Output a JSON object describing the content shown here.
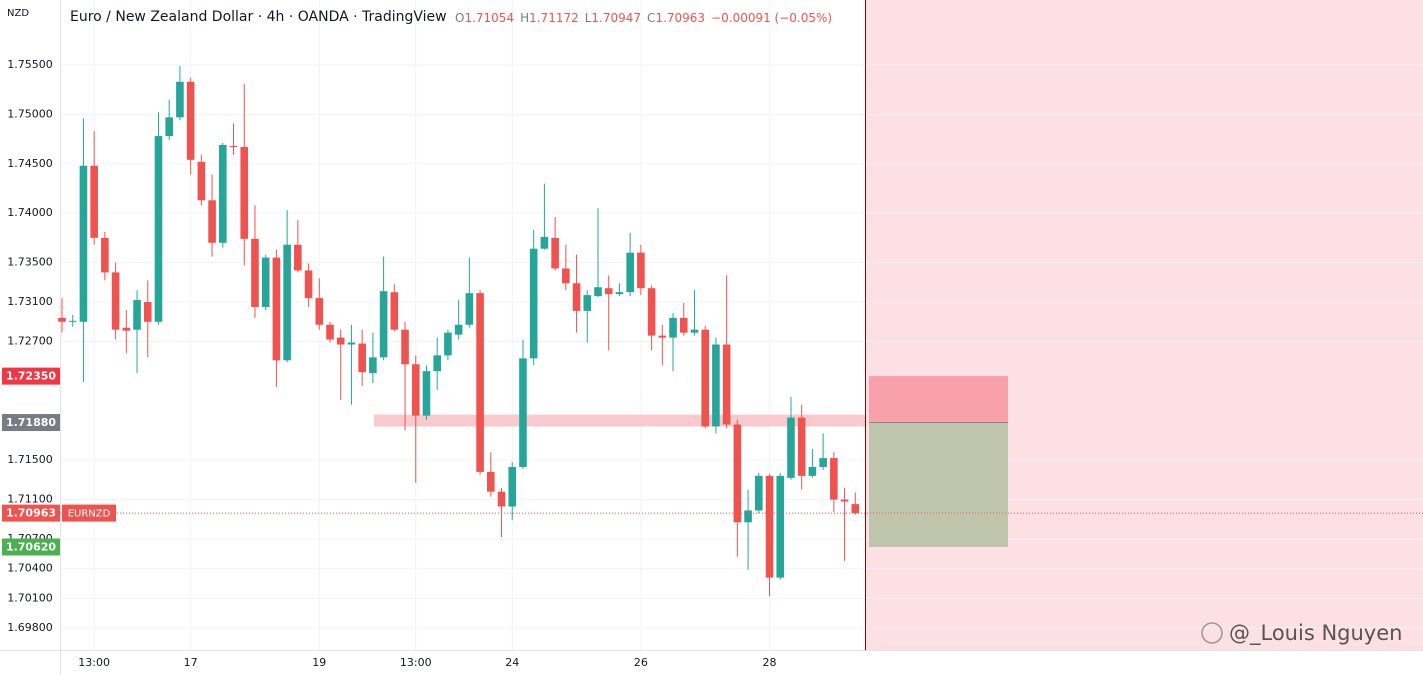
{
  "chart_data": {
    "type": "candlestick",
    "currency": "NZD",
    "title": "Euro / New Zealand Dollar · 4h · OANDA · TradingView",
    "legend": [
      {
        "key": "O",
        "value": "1.71054"
      },
      {
        "key": "H",
        "value": "1.71172"
      },
      {
        "key": "L",
        "value": "1.70947"
      },
      {
        "key": "C",
        "value": "1.70963"
      }
    ],
    "change": "−0.00091 (−0.05%)",
    "watermark": "@_Louis Nguyen",
    "symbol": "EURNZD",
    "up_color": "#26a69a",
    "down_color": "#ef5350",
    "grid": true,
    "ylim": [
      1.69577,
      1.76158
    ],
    "yticks": [
      {
        "value": 1.755,
        "label": "1.75500"
      },
      {
        "value": 1.75,
        "label": "1.75000"
      },
      {
        "value": 1.745,
        "label": "1.74500"
      },
      {
        "value": 1.74,
        "label": "1.74000"
      },
      {
        "value": 1.735,
        "label": "1.73500"
      },
      {
        "value": 1.731,
        "label": "1.73100"
      },
      {
        "value": 1.727,
        "label": "1.72700"
      },
      {
        "value": 1.715,
        "label": "1.71500"
      },
      {
        "value": 1.711,
        "label": "1.71100"
      },
      {
        "value": 1.707,
        "label": "1.70700"
      },
      {
        "value": 1.704,
        "label": "1.70400"
      },
      {
        "value": 1.701,
        "label": "1.70100"
      },
      {
        "value": 1.698,
        "label": "1.69800"
      }
    ],
    "categories": [
      null,
      null,
      null,
      "13:00",
      null,
      null,
      null,
      null,
      null,
      null,
      null,
      null,
      "17",
      null,
      null,
      null,
      null,
      null,
      null,
      null,
      null,
      null,
      null,
      null,
      "19",
      null,
      null,
      null,
      null,
      null,
      null,
      null,
      null,
      "13:00",
      null,
      null,
      null,
      null,
      null,
      null,
      null,
      null,
      "24",
      null,
      null,
      null,
      null,
      null,
      null,
      null,
      null,
      null,
      null,
      null,
      "26",
      null,
      null,
      null,
      null,
      null,
      null,
      null,
      null,
      null,
      null,
      null,
      "28",
      null,
      null,
      null,
      null,
      null,
      null,
      null,
      null
    ],
    "open": [
      1.7294,
      1.729,
      1.729,
      1.7448,
      1.7375,
      1.734,
      1.7284,
      1.7282,
      1.731,
      1.729,
      1.7478,
      1.7497,
      1.7533,
      1.7452,
      1.7413,
      1.737,
      1.7468,
      1.7467,
      1.7374,
      1.7305,
      1.7355,
      1.7251,
      1.7368,
      1.7342,
      1.7314,
      1.7287,
      1.7274,
      1.7267,
      1.7268,
      1.7238,
      1.7254,
      1.732,
      1.7282,
      1.7247,
      1.7195,
      1.724,
      1.7256,
      1.7277,
      1.7287,
      1.7319,
      1.7138,
      1.7118,
      1.7103,
      1.7143,
      1.7253,
      1.7364,
      1.7375,
      1.7344,
      1.7329,
      1.7301,
      1.7316,
      1.7324,
      1.7318,
      1.732,
      1.736,
      1.7324,
      1.7276,
      1.7274,
      1.7294,
      1.7279,
      1.7282,
      1.7184,
      1.7267,
      1.7186,
      1.7087,
      1.7099,
      1.7134,
      1.7031,
      1.7132,
      1.7193,
      1.7134,
      1.7143,
      1.7152,
      1.711,
      1.71054
    ],
    "high": [
      1.7314,
      1.7297,
      1.7496,
      1.7483,
      1.7381,
      1.735,
      1.7302,
      1.7322,
      1.7332,
      1.7502,
      1.7515,
      1.7549,
      1.7537,
      1.7459,
      1.7439,
      1.7471,
      1.7491,
      1.7531,
      1.7408,
      1.7358,
      1.7363,
      1.7403,
      1.7393,
      1.7349,
      1.7334,
      1.729,
      1.7282,
      1.7287,
      1.7282,
      1.7279,
      1.7356,
      1.7328,
      1.729,
      1.7256,
      1.7246,
      1.7274,
      1.7282,
      1.7312,
      1.7355,
      1.7322,
      1.7158,
      1.7122,
      1.7148,
      1.7272,
      1.7383,
      1.743,
      1.7396,
      1.7368,
      1.7358,
      1.7322,
      1.7405,
      1.7337,
      1.7329,
      1.738,
      1.7368,
      1.7327,
      1.7287,
      1.7299,
      1.7309,
      1.7322,
      1.7286,
      1.7274,
      1.7337,
      1.7191,
      1.712,
      1.7137,
      1.7136,
      1.7137,
      1.7214,
      1.7206,
      1.7161,
      1.7177,
      1.7158,
      1.7122,
      1.71172
    ],
    "low": [
      1.7279,
      1.7285,
      1.7229,
      1.7368,
      1.7332,
      1.7272,
      1.7258,
      1.7238,
      1.7254,
      1.7287,
      1.7474,
      1.7494,
      1.7439,
      1.7408,
      1.7356,
      1.7365,
      1.7459,
      1.7347,
      1.7294,
      1.7302,
      1.7224,
      1.7249,
      1.734,
      1.7305,
      1.7282,
      1.7269,
      1.7211,
      1.7206,
      1.7225,
      1.7228,
      1.7251,
      1.728,
      1.718,
      1.7127,
      1.7191,
      1.7221,
      1.7251,
      1.7272,
      1.7284,
      1.7135,
      1.7113,
      1.7072,
      1.7089,
      1.7141,
      1.7246,
      1.7363,
      1.7342,
      1.7322,
      1.7279,
      1.7269,
      1.7315,
      1.7261,
      1.7316,
      1.7316,
      1.7317,
      1.7261,
      1.7246,
      1.724,
      1.7276,
      1.7276,
      1.7182,
      1.7177,
      1.7182,
      1.7052,
      1.7039,
      1.7096,
      1.7012,
      1.7029,
      1.713,
      1.712,
      1.7132,
      1.714,
      1.7097,
      1.7048,
      1.70947
    ],
    "close": [
      1.729,
      1.7291,
      1.7448,
      1.7375,
      1.734,
      1.7282,
      1.7281,
      1.7312,
      1.729,
      1.7478,
      1.7497,
      1.7533,
      1.7454,
      1.7413,
      1.737,
      1.7469,
      1.7467,
      1.7374,
      1.7305,
      1.7355,
      1.7251,
      1.7368,
      1.7342,
      1.7314,
      1.7287,
      1.7272,
      1.7267,
      1.7269,
      1.7239,
      1.7254,
      1.7321,
      1.7282,
      1.7247,
      1.7195,
      1.724,
      1.7256,
      1.7279,
      1.7287,
      1.7319,
      1.7138,
      1.7118,
      1.7103,
      1.7143,
      1.7253,
      1.7364,
      1.7376,
      1.7344,
      1.7329,
      1.7301,
      1.7317,
      1.7325,
      1.7318,
      1.732,
      1.736,
      1.7324,
      1.7276,
      1.7274,
      1.7294,
      1.7279,
      1.7282,
      1.7184,
      1.7267,
      1.7186,
      1.7087,
      1.7099,
      1.7134,
      1.7031,
      1.7134,
      1.7193,
      1.7134,
      1.7143,
      1.7152,
      1.711,
      1.7108,
      1.70963
    ],
    "zone": [
      1.7184,
      1.7196
    ],
    "position": {
      "stop": {
        "value": 1.7235,
        "label": "1.72350"
      },
      "entry": {
        "value": 1.7188,
        "label": "1.71880"
      },
      "target": {
        "value": 1.7062,
        "label": "1.70620"
      }
    },
    "last_price": {
      "value": 1.70963,
      "label": "1.70963"
    }
  }
}
